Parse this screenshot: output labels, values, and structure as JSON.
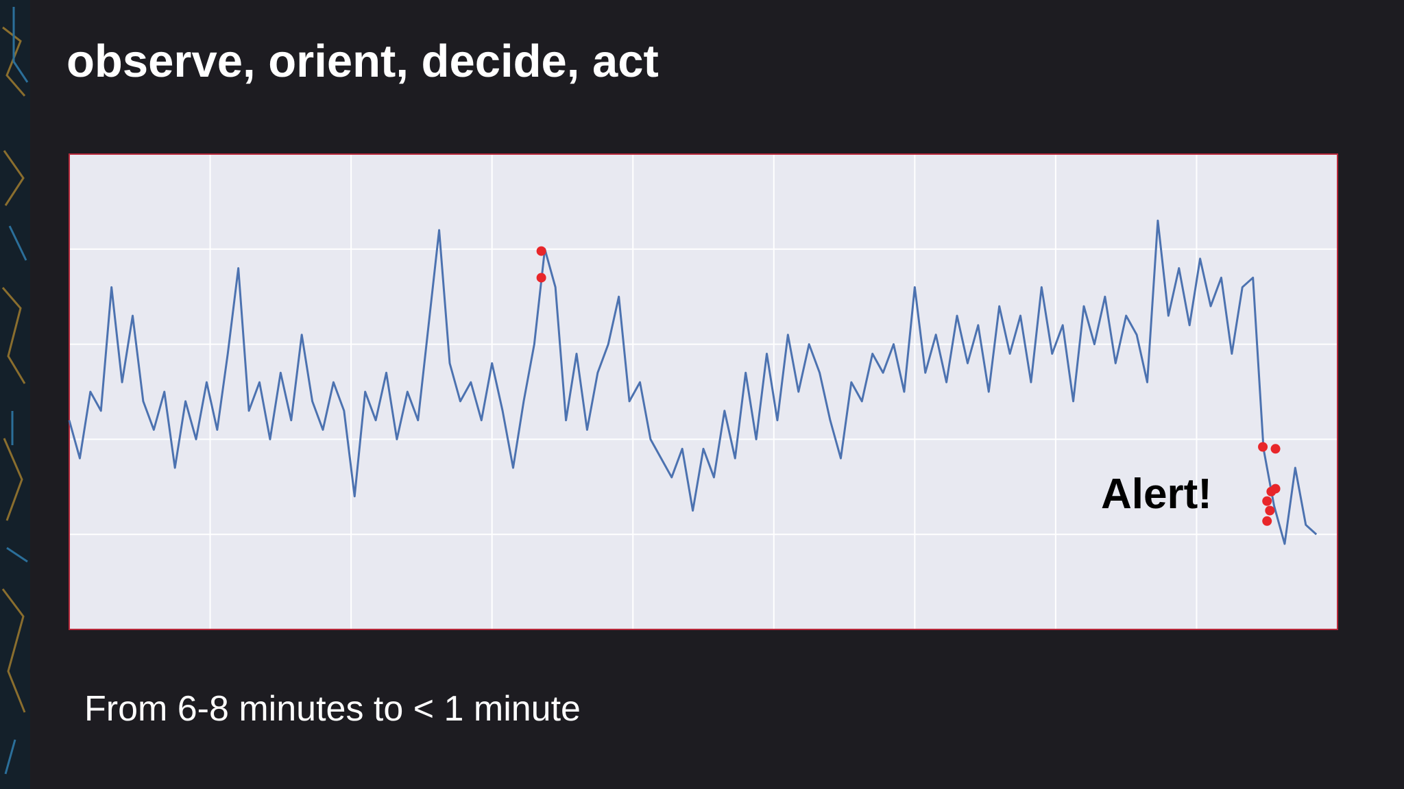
{
  "slide": {
    "title": "observe, orient, decide, act",
    "caption": "From 6-8 minutes to < 1 minute"
  },
  "chart_data": {
    "type": "line",
    "annotation": "Alert!",
    "xlim": [
      0,
      9
    ],
    "ylim": [
      0,
      5
    ],
    "xticks": [
      1,
      2,
      3,
      4,
      5,
      6,
      7,
      8
    ],
    "yticks": [
      1,
      2,
      3,
      4
    ],
    "grid": true,
    "series": [
      {
        "color": "#4c72b0",
        "style": "line",
        "x": [
          0,
          0.075,
          0.15,
          0.225,
          0.3,
          0.375,
          0.45,
          0.525,
          0.6,
          0.675,
          0.75,
          0.825,
          0.9,
          0.975,
          1.05,
          1.125,
          1.2,
          1.275,
          1.35,
          1.425,
          1.5,
          1.575,
          1.65,
          1.725,
          1.8,
          1.875,
          1.95,
          2.025,
          2.1,
          2.175,
          2.25,
          2.325,
          2.4,
          2.475,
          2.55,
          2.625,
          2.7,
          2.775,
          2.85,
          2.925,
          3.0,
          3.075,
          3.15,
          3.225,
          3.3,
          3.375,
          3.45,
          3.525,
          3.6,
          3.675,
          3.75,
          3.825,
          3.9,
          3.975,
          4.05,
          4.125,
          4.2,
          4.275,
          4.35,
          4.425,
          4.5,
          4.575,
          4.65,
          4.725,
          4.8,
          4.875,
          4.95,
          5.025,
          5.1,
          5.175,
          5.25,
          5.325,
          5.4,
          5.475,
          5.55,
          5.625,
          5.7,
          5.775,
          5.85,
          5.925,
          6.0,
          6.075,
          6.15,
          6.225,
          6.3,
          6.375,
          6.45,
          6.525,
          6.6,
          6.675,
          6.75,
          6.825,
          6.9,
          6.975,
          7.05,
          7.125,
          7.2,
          7.275,
          7.35,
          7.425,
          7.5,
          7.575,
          7.65,
          7.725,
          7.8,
          7.875,
          7.95,
          8.025,
          8.1,
          8.175,
          8.25,
          8.325,
          8.4,
          8.475,
          8.55,
          8.625,
          8.7,
          8.775,
          8.85
        ],
        "values": [
          2.2,
          1.8,
          2.5,
          2.3,
          3.6,
          2.6,
          3.3,
          2.4,
          2.1,
          2.5,
          1.7,
          2.4,
          2.0,
          2.6,
          2.1,
          2.9,
          3.8,
          2.3,
          2.6,
          2.0,
          2.7,
          2.2,
          3.1,
          2.4,
          2.1,
          2.6,
          2.3,
          1.4,
          2.5,
          2.2,
          2.7,
          2.0,
          2.5,
          2.2,
          3.2,
          4.2,
          2.8,
          2.4,
          2.6,
          2.2,
          2.8,
          2.3,
          1.7,
          2.4,
          3.0,
          4.0,
          3.6,
          2.2,
          2.9,
          2.1,
          2.7,
          3.0,
          3.5,
          2.4,
          2.6,
          2.0,
          1.8,
          1.6,
          1.9,
          1.25,
          1.9,
          1.6,
          2.3,
          1.8,
          2.7,
          2.0,
          2.9,
          2.2,
          3.1,
          2.5,
          3.0,
          2.7,
          2.2,
          1.8,
          2.6,
          2.4,
          2.9,
          2.7,
          3.0,
          2.5,
          3.6,
          2.7,
          3.1,
          2.6,
          3.3,
          2.8,
          3.2,
          2.5,
          3.4,
          2.9,
          3.3,
          2.6,
          3.6,
          2.9,
          3.2,
          2.4,
          3.4,
          3.0,
          3.5,
          2.8,
          3.3,
          3.1,
          2.6,
          4.3,
          3.3,
          3.8,
          3.2,
          3.9,
          3.4,
          3.7,
          2.9,
          3.6,
          3.7,
          1.9,
          1.3,
          0.9,
          1.7,
          1.1,
          1.0
        ]
      },
      {
        "color": "#e8262a",
        "style": "points",
        "x": [
          3.35,
          3.35,
          8.47,
          8.56,
          8.5,
          8.53,
          8.56,
          8.5,
          8.52
        ],
        "values": [
          3.98,
          3.7,
          1.92,
          1.9,
          1.35,
          1.45,
          1.48,
          1.14,
          1.25
        ]
      }
    ]
  }
}
